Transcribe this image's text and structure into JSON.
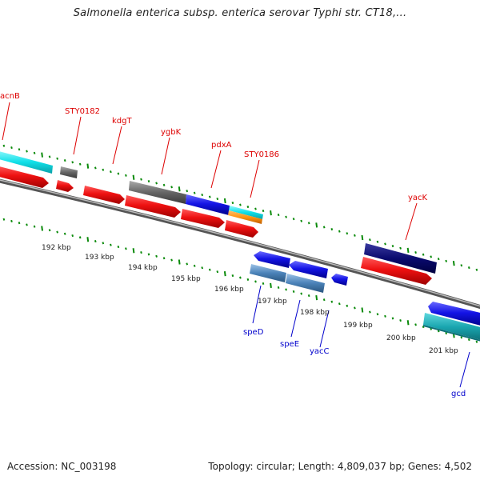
{
  "title": "Salmonella enterica subsp. enterica serovar Typhi str. CT18,...",
  "footer": {
    "accession": "Accession: NC_003198",
    "topology": "Topology: circular; Length: 4,809,037 bp; Genes: 4,502"
  },
  "colors": {
    "forward_gene": "#e61010",
    "reverse_gene": "#1414e6",
    "cyan": "#11e0e8",
    "teal": "#1aa6b0",
    "grey": "#666666",
    "navy": "#0a0a6e",
    "steelblue": "#4a82b8",
    "orange": "#ff9410",
    "tick_green": "#0a8a0a",
    "backbone": "#777777",
    "label_red": "#dd0000",
    "label_blue": "#0000cc"
  },
  "scale_labels": [
    "192 kbp",
    "193 kbp",
    "194 kbp",
    "195 kbp",
    "196 kbp",
    "197 kbp",
    "198 kbp",
    "199 kbp",
    "200 kbp",
    "201 kbp"
  ],
  "gene_labels_top": [
    "acnB",
    "STY0182",
    "kdgT",
    "ygbK",
    "pdxA",
    "STY0186",
    "yacK"
  ],
  "gene_labels_bottom": [
    "speD",
    "speE",
    "yacC",
    "gcd"
  ]
}
